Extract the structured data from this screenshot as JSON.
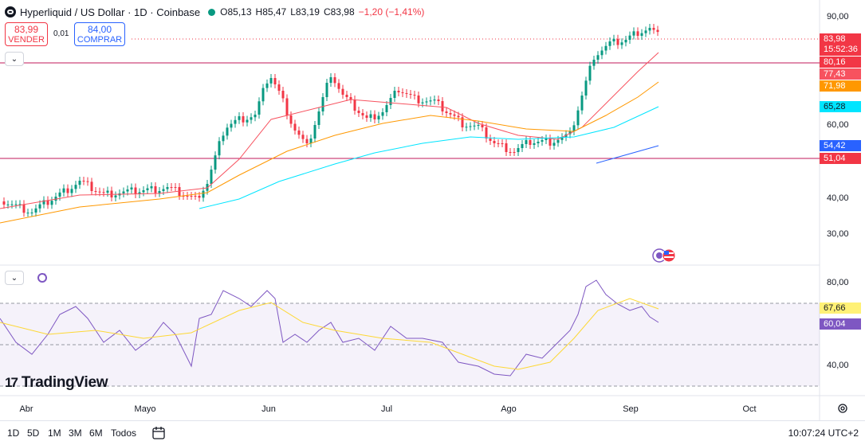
{
  "legend": {
    "title": "Hyperliquid / US Dollar · 1D · Coinbase",
    "open": "O85,13",
    "high": "H85,47",
    "low": "L83,19",
    "close": "C83,98",
    "change": "−1,20 (−1,41%)"
  },
  "trade": {
    "sell_price": "83,99",
    "sell_label": "VENDER",
    "spread": "0,01",
    "buy_price": "84,00",
    "buy_label": "COMPRAR"
  },
  "price_axis": {
    "ticks": [
      "90,00",
      "60,00",
      "40,00",
      "30,00"
    ],
    "last_price": "83,98",
    "countdown": "15:52:36",
    "labels": [
      {
        "text": "80,16",
        "color": "#f23645"
      },
      {
        "text": "77,43",
        "color": "#f7525f"
      },
      {
        "text": "71,98",
        "color": "#ff9800"
      },
      {
        "text": "65,28",
        "color": "#00e5ff"
      },
      {
        "text": "54,42",
        "color": "#2962ff"
      },
      {
        "text": "51,04",
        "color": "#f23645"
      }
    ]
  },
  "rsi_axis": {
    "ticks": [
      "80,00",
      "40,00"
    ],
    "labels": [
      {
        "text": "67,66",
        "color": "#fff176"
      },
      {
        "text": "60,04",
        "color": "#7e57c2"
      }
    ]
  },
  "time_axis": [
    "Abr",
    "Mayo",
    "Jun",
    "Jul",
    "Ago",
    "Sep",
    "Oct"
  ],
  "watermark": "TradingView",
  "bottom": {
    "ranges": [
      "1D",
      "5D",
      "1M",
      "3M",
      "6M",
      "Todos"
    ],
    "clock": "10:07:24 UTC+2"
  },
  "colors": {
    "up": "#089981",
    "down": "#f23645",
    "sma_fast": "#f7525f",
    "sma_mid": "#ff9800",
    "sma_slow": "#00e5ff",
    "trend": "#2962ff",
    "rsi": "#7e57c2",
    "rsi_ma": "#fdd835"
  },
  "icons": [
    "collapse-chevron-icon",
    "refresh-icon",
    "calendar-icon",
    "settings-gear-icon",
    "hyperliquid-logo-icon",
    "flag-icons"
  ]
}
